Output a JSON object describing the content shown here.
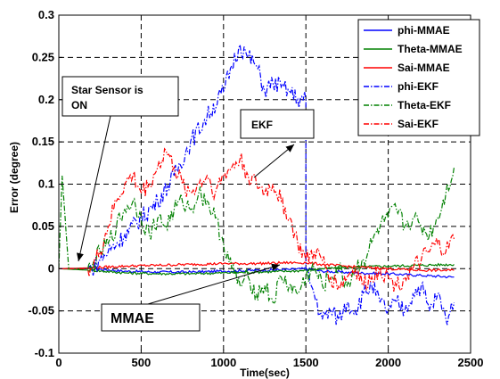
{
  "chart_data": {
    "type": "line",
    "title": "",
    "xlabel": "Time(sec)",
    "ylabel": "Error (degree)",
    "xlim": [
      0,
      2500
    ],
    "ylim": [
      -0.1,
      0.3
    ],
    "xticks": [
      0,
      500,
      1000,
      1500,
      2000,
      2500
    ],
    "yticks": [
      -0.1,
      -0.05,
      0,
      0.05,
      0.1,
      0.15,
      0.2,
      0.25,
      0.3
    ],
    "xtick_labels": [
      "0",
      "500",
      "1000",
      "1500",
      "2000",
      "2500"
    ],
    "ytick_labels": [
      "-0.1",
      "-0.05",
      "0",
      "0.05",
      "0.1",
      "0.15",
      "0.2",
      "0.25",
      "0.3"
    ],
    "grid": true,
    "grid_style": "dashed",
    "legend_position": "top-right",
    "series": [
      {
        "name": "phi-MMAE",
        "color": "#0000ff",
        "style": "solid",
        "x": [
          0,
          200,
          400,
          600,
          800,
          1000,
          1200,
          1400,
          1500,
          1600,
          1800,
          2000,
          2200,
          2400
        ],
        "y": [
          0,
          0,
          -0.003,
          -0.004,
          -0.004,
          -0.003,
          -0.002,
          -0.001,
          0,
          -0.003,
          -0.005,
          -0.006,
          -0.008,
          -0.01
        ]
      },
      {
        "name": "Theta-MMAE",
        "color": "#008000",
        "style": "solid",
        "x": [
          0,
          200,
          400,
          600,
          800,
          1000,
          1200,
          1400,
          1500,
          1600,
          1800,
          2000,
          2200,
          2400
        ],
        "y": [
          0,
          -0.002,
          -0.005,
          -0.006,
          -0.006,
          -0.005,
          -0.004,
          -0.003,
          -0.002,
          0,
          0.002,
          0.003,
          0.004,
          0.005
        ]
      },
      {
        "name": "Sai-MMAE",
        "color": "#ff0000",
        "style": "solid",
        "x": [
          0,
          200,
          400,
          600,
          800,
          1000,
          1200,
          1400,
          1500,
          1600,
          1800,
          2000,
          2200,
          2400
        ],
        "y": [
          0,
          0.001,
          0.003,
          0.004,
          0.005,
          0.006,
          0.006,
          0.007,
          0.007,
          0.005,
          0.002,
          0,
          -0.002,
          -0.002
        ]
      },
      {
        "name": "phi-EKF",
        "color": "#0000ff",
        "style": "dashdot",
        "x": [
          0,
          200,
          250,
          300,
          400,
          500,
          600,
          700,
          800,
          900,
          1000,
          1050,
          1100,
          1150,
          1200,
          1250,
          1300,
          1350,
          1400,
          1450,
          1500,
          1500,
          1550,
          1600,
          1650,
          1700,
          1750,
          1800,
          1850,
          1900,
          1950,
          2000,
          2050,
          2100,
          2150,
          2200,
          2250,
          2300,
          2350,
          2400
        ],
        "y": [
          0,
          0,
          0.01,
          0.02,
          0.04,
          0.06,
          0.08,
          0.11,
          0.15,
          0.18,
          0.21,
          0.24,
          0.265,
          0.25,
          0.24,
          0.21,
          0.22,
          0.215,
          0.21,
          0.2,
          0.2,
          0,
          -0.03,
          -0.06,
          -0.05,
          -0.06,
          -0.04,
          -0.05,
          -0.03,
          -0.02,
          -0.04,
          -0.05,
          -0.04,
          -0.05,
          -0.03,
          -0.02,
          -0.05,
          -0.03,
          -0.06,
          -0.04
        ]
      },
      {
        "name": "Theta-EKF",
        "color": "#008000",
        "style": "dashdot",
        "x": [
          0,
          20,
          60,
          200,
          250,
          300,
          350,
          400,
          450,
          500,
          550,
          600,
          650,
          700,
          750,
          800,
          850,
          900,
          950,
          1000,
          1050,
          1100,
          1150,
          1200,
          1250,
          1300,
          1350,
          1400,
          1450,
          1500,
          1550,
          1600,
          1650,
          1700,
          1750,
          1800,
          1850,
          1900,
          1950,
          2000,
          2050,
          2100,
          2150,
          2200,
          2250,
          2300,
          2350,
          2400
        ],
        "y": [
          0,
          0.11,
          0,
          0,
          0.02,
          0.03,
          0.05,
          0.07,
          0.08,
          0.06,
          0.04,
          0.06,
          0.05,
          0.07,
          0.08,
          0.07,
          0.09,
          0.08,
          0.06,
          0.03,
          0,
          -0.02,
          -0.01,
          -0.03,
          -0.02,
          -0.04,
          -0.01,
          -0.02,
          -0.03,
          -0.01,
          0,
          -0.02,
          -0.01,
          0,
          -0.02,
          0,
          0.01,
          0.03,
          0.05,
          0.06,
          0.07,
          0.05,
          0.06,
          0.05,
          0.04,
          0.06,
          0.09,
          0.12
        ]
      },
      {
        "name": "Sai-EKF",
        "color": "#ff0000",
        "style": "dashdot",
        "x": [
          0,
          200,
          250,
          300,
          350,
          400,
          450,
          500,
          550,
          600,
          650,
          700,
          750,
          800,
          850,
          900,
          950,
          1000,
          1050,
          1100,
          1150,
          1200,
          1250,
          1300,
          1350,
          1400,
          1450,
          1500,
          1550,
          1600,
          1650,
          1700,
          1750,
          1800,
          1850,
          1900,
          1950,
          2000,
          2050,
          2100,
          2150,
          2200,
          2250,
          2300,
          2350,
          2400
        ],
        "y": [
          0,
          0,
          0.02,
          0.05,
          0.08,
          0.1,
          0.11,
          0.09,
          0.1,
          0.12,
          0.14,
          0.12,
          0.1,
          0.09,
          0.1,
          0.11,
          0.09,
          0.11,
          0.12,
          0.13,
          0.11,
          0.1,
          0.09,
          0.1,
          0.08,
          0.06,
          0.03,
          0.01,
          0.02,
          0.01,
          -0.01,
          -0.02,
          -0.01,
          0,
          -0.02,
          -0.01,
          0,
          -0.01,
          -0.02,
          -0.01,
          0,
          0.01,
          0.02,
          0.03,
          0.02,
          0.035
        ]
      }
    ],
    "annotations": [
      {
        "text": "Star Sensor is\nON",
        "points_to": [
          100,
          0
        ]
      },
      {
        "text": "EKF",
        "points_to": [
          1410,
          0.155
        ]
      },
      {
        "text": "MMAE",
        "points_to": [
          1270,
          0.005
        ]
      }
    ]
  }
}
